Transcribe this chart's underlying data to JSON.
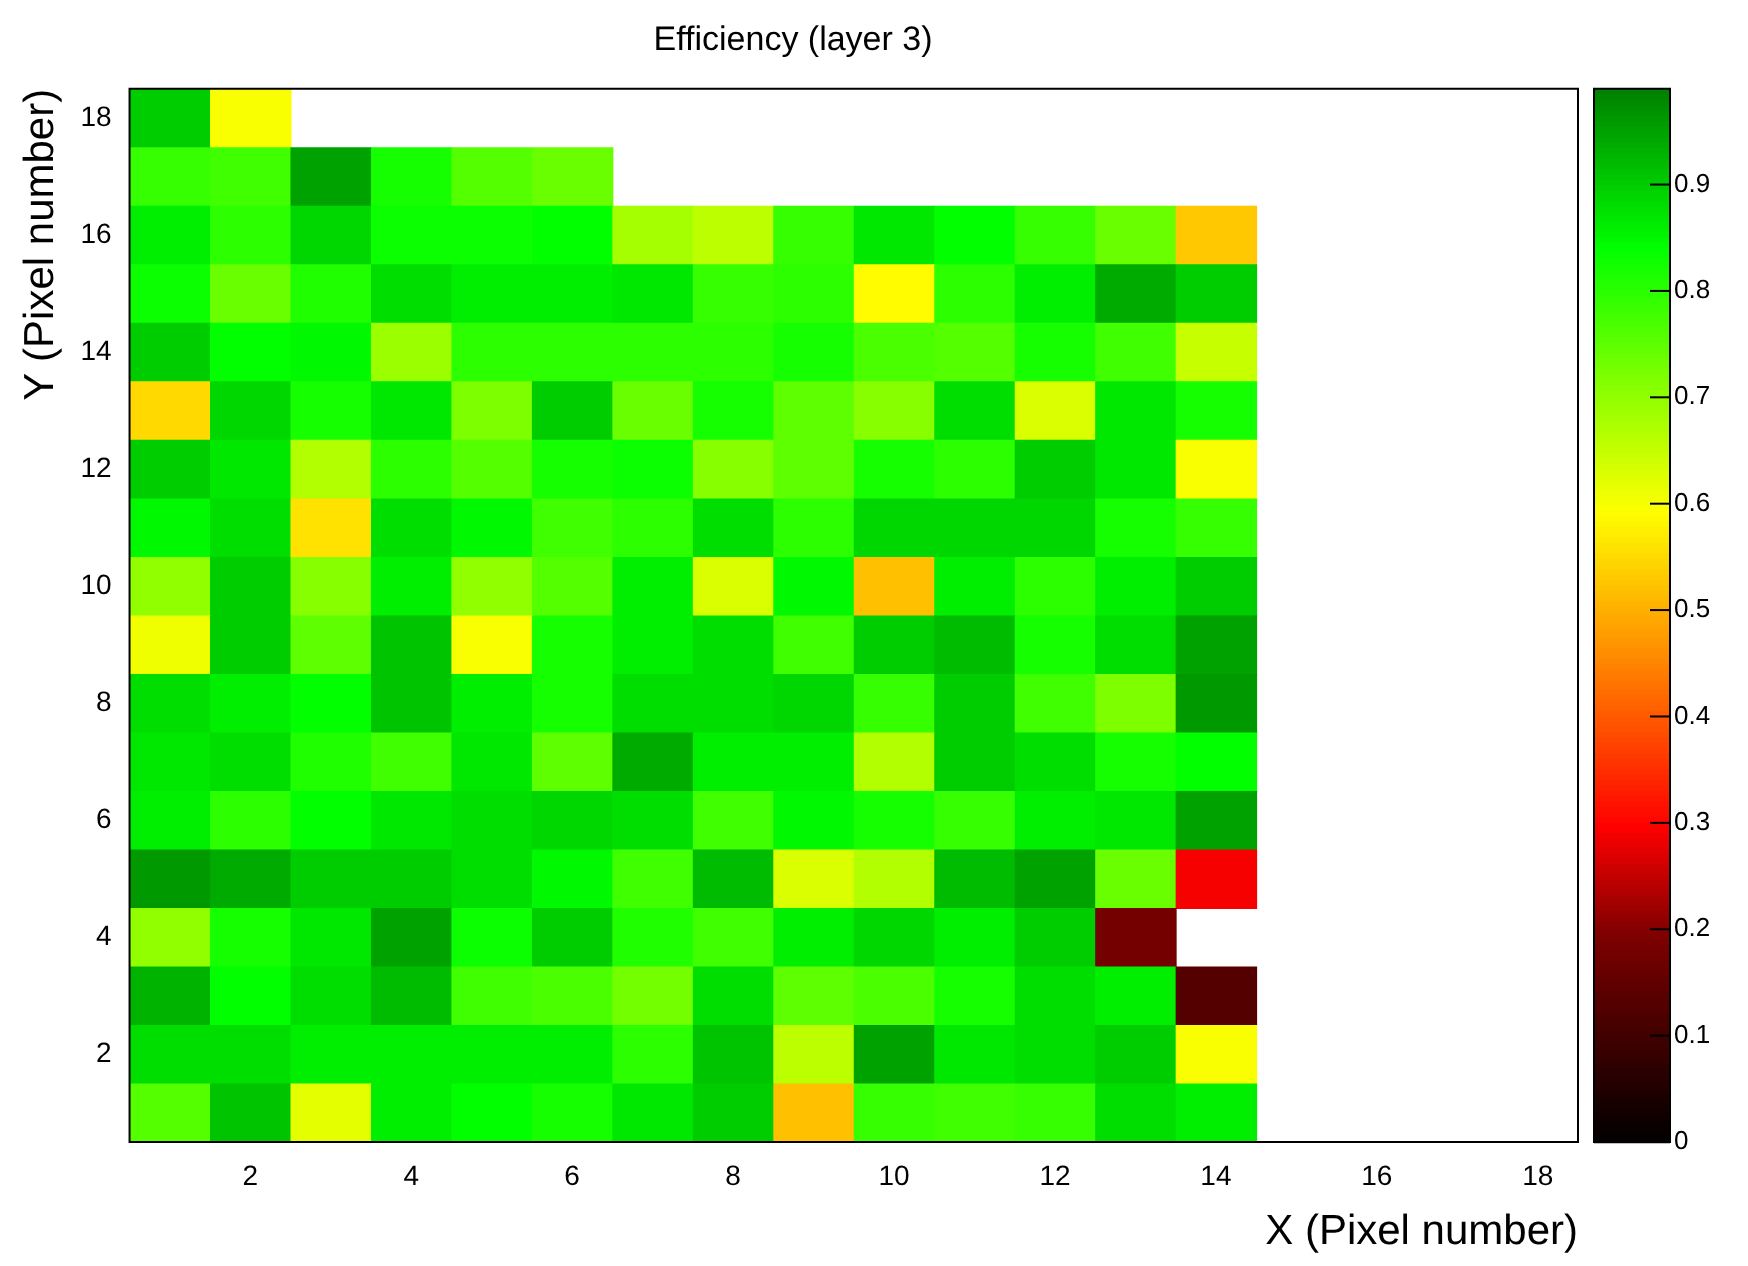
{
  "chart_data": {
    "type": "heatmap",
    "title": "Efficiency (layer 3)",
    "xlabel": "X (Pixel number)",
    "ylabel": "Y (Pixel number)",
    "categories": [
      null,
      "2",
      null,
      "4",
      null,
      "6",
      null,
      "8",
      null,
      "10",
      null,
      "12",
      null,
      "14",
      null,
      "16",
      null,
      "18"
    ],
    "y_categories": [
      "18",
      null,
      "16",
      null,
      "14",
      null,
      "12",
      null,
      "10",
      null,
      "8",
      null,
      "6",
      null,
      "4",
      null,
      "2",
      null
    ],
    "cells": [
      [
        0.9,
        0.6,
        null,
        null,
        null,
        null,
        null,
        null,
        null,
        null,
        null,
        null,
        null,
        null,
        null,
        null,
        null,
        null
      ],
      [
        0.79,
        0.78,
        0.95,
        0.82,
        0.76,
        0.74,
        null,
        null,
        null,
        null,
        null,
        null,
        null,
        null,
        null,
        null,
        null,
        null
      ],
      [
        0.86,
        0.8,
        0.89,
        0.83,
        0.83,
        0.84,
        0.68,
        0.66,
        0.79,
        0.87,
        0.84,
        0.79,
        0.74,
        0.53,
        null,
        null,
        null,
        null
      ],
      [
        0.83,
        0.74,
        0.81,
        0.88,
        0.86,
        0.86,
        0.87,
        0.79,
        0.8,
        0.59,
        0.8,
        0.86,
        0.94,
        0.9,
        null,
        null,
        null,
        null
      ],
      [
        0.9,
        0.84,
        0.85,
        0.69,
        0.8,
        0.8,
        0.8,
        0.8,
        0.82,
        0.77,
        0.76,
        0.82,
        0.78,
        0.65,
        null,
        null,
        null,
        null
      ],
      [
        0.55,
        0.89,
        0.82,
        0.87,
        0.72,
        0.9,
        0.74,
        0.82,
        0.75,
        0.71,
        0.88,
        0.63,
        0.87,
        0.82,
        null,
        null,
        null,
        null
      ],
      [
        0.9,
        0.87,
        0.67,
        0.8,
        0.76,
        0.82,
        0.83,
        0.71,
        0.75,
        0.82,
        0.8,
        0.9,
        0.87,
        0.6,
        null,
        null,
        null,
        null
      ],
      [
        0.85,
        0.88,
        0.56,
        0.88,
        0.85,
        0.78,
        0.8,
        0.88,
        0.8,
        0.89,
        0.89,
        0.89,
        0.82,
        0.79,
        null,
        null,
        null,
        null
      ],
      [
        0.7,
        0.9,
        0.71,
        0.86,
        0.7,
        0.76,
        0.86,
        0.63,
        0.85,
        0.52,
        0.86,
        0.8,
        0.86,
        0.9,
        null,
        null,
        null,
        null
      ],
      [
        0.61,
        0.9,
        0.75,
        0.91,
        0.6,
        0.82,
        0.86,
        0.88,
        0.78,
        0.9,
        0.92,
        0.82,
        0.88,
        0.95,
        null,
        null,
        null,
        null
      ],
      [
        0.88,
        0.86,
        0.84,
        0.91,
        0.86,
        0.82,
        0.88,
        0.88,
        0.89,
        0.79,
        0.9,
        0.78,
        0.72,
        0.96,
        null,
        null,
        null,
        null
      ],
      [
        0.87,
        0.88,
        0.81,
        0.78,
        0.87,
        0.75,
        0.94,
        0.86,
        0.86,
        0.67,
        0.9,
        0.88,
        0.82,
        0.84,
        null,
        null,
        null,
        null
      ],
      [
        0.86,
        0.8,
        0.84,
        0.87,
        0.88,
        0.89,
        0.88,
        0.78,
        0.85,
        0.82,
        0.79,
        0.86,
        0.87,
        0.95,
        null,
        null,
        null,
        null
      ],
      [
        0.96,
        0.94,
        0.9,
        0.9,
        0.88,
        0.85,
        0.78,
        0.92,
        0.63,
        0.67,
        0.92,
        0.95,
        0.74,
        0.29,
        null,
        null,
        null,
        null
      ],
      [
        0.7,
        0.82,
        0.87,
        0.95,
        0.83,
        0.9,
        0.81,
        0.78,
        0.86,
        0.89,
        0.86,
        0.9,
        0.18,
        null,
        null,
        null,
        null,
        null
      ],
      [
        0.93,
        0.84,
        0.88,
        0.92,
        0.78,
        0.77,
        0.73,
        0.88,
        0.75,
        0.77,
        0.82,
        0.88,
        0.86,
        0.13,
        null,
        null,
        null,
        null
      ],
      [
        0.88,
        0.88,
        0.86,
        0.86,
        0.86,
        0.86,
        0.8,
        0.91,
        0.66,
        0.95,
        0.87,
        0.88,
        0.9,
        0.6,
        null,
        null,
        null,
        null
      ],
      [
        0.76,
        0.91,
        0.62,
        0.86,
        0.84,
        0.82,
        0.87,
        0.9,
        0.52,
        0.79,
        0.78,
        0.79,
        0.88,
        0.86,
        null,
        null,
        null,
        null
      ]
    ],
    "clim": [
      0,
      0.99
    ],
    "cticks": [
      0,
      0.1,
      0.2,
      0.3,
      0.4,
      0.5,
      0.6,
      0.7,
      0.8,
      0.9
    ]
  }
}
